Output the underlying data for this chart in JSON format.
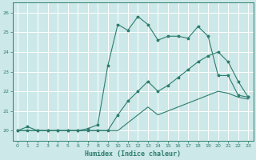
{
  "xlabel": "Humidex (Indice chaleur)",
  "xlim": [
    -0.5,
    23.5
  ],
  "ylim": [
    19.5,
    26.5
  ],
  "yticks": [
    20,
    21,
    22,
    23,
    24,
    25,
    26
  ],
  "xticks": [
    0,
    1,
    2,
    3,
    4,
    5,
    6,
    7,
    8,
    9,
    10,
    11,
    12,
    13,
    14,
    15,
    16,
    17,
    18,
    19,
    20,
    21,
    22,
    23
  ],
  "bg_color": "#cce8e8",
  "grid_color": "#ffffff",
  "line_color": "#2e7d6e",
  "series1_x": [
    0,
    1,
    2,
    3,
    4,
    5,
    6,
    7,
    8,
    9,
    10,
    11,
    12,
    13,
    14,
    15,
    16,
    17,
    18,
    19,
    20,
    21,
    22,
    23
  ],
  "series1_y": [
    20.0,
    20.2,
    20.0,
    20.0,
    20.0,
    20.0,
    20.0,
    20.1,
    20.3,
    23.3,
    25.4,
    25.1,
    25.8,
    25.4,
    24.6,
    24.8,
    24.8,
    24.7,
    25.3,
    24.8,
    22.8,
    22.8,
    21.8,
    21.7
  ],
  "series2_x": [
    0,
    1,
    2,
    3,
    4,
    5,
    6,
    7,
    8,
    9,
    10,
    11,
    12,
    13,
    14,
    15,
    16,
    17,
    18,
    19,
    20,
    21,
    22,
    23
  ],
  "series2_y": [
    20.0,
    20.0,
    20.0,
    20.0,
    20.0,
    20.0,
    20.0,
    20.0,
    20.0,
    20.0,
    20.8,
    21.5,
    22.0,
    22.5,
    22.0,
    22.3,
    22.7,
    23.1,
    23.5,
    23.8,
    24.0,
    23.5,
    22.5,
    21.7
  ],
  "series3_x": [
    0,
    1,
    2,
    3,
    4,
    5,
    6,
    7,
    8,
    9,
    10,
    11,
    12,
    13,
    14,
    15,
    16,
    17,
    18,
    19,
    20,
    21,
    22,
    23
  ],
  "series3_y": [
    20.0,
    20.0,
    20.0,
    20.0,
    20.0,
    20.0,
    20.0,
    20.0,
    20.0,
    20.0,
    20.0,
    20.4,
    20.8,
    21.2,
    20.8,
    21.0,
    21.2,
    21.4,
    21.6,
    21.8,
    22.0,
    21.9,
    21.7,
    21.6
  ]
}
